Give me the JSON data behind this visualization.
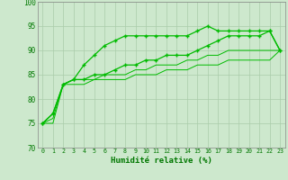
{
  "title": "",
  "xlabel": "Humidité relative (%)",
  "ylabel": "",
  "xlim": [
    -0.5,
    23.5
  ],
  "ylim": [
    70,
    100
  ],
  "yticks": [
    70,
    75,
    80,
    85,
    90,
    95,
    100
  ],
  "xticks": [
    0,
    1,
    2,
    3,
    4,
    5,
    6,
    7,
    8,
    9,
    10,
    11,
    12,
    13,
    14,
    15,
    16,
    17,
    18,
    19,
    20,
    21,
    22,
    23
  ],
  "bg_color": "#cde8cd",
  "grid_color": "#aaccaa",
  "line_color": "#00bb00",
  "line1_x": [
    0,
    1,
    2,
    3,
    4,
    5,
    6,
    7,
    8,
    9,
    10,
    11,
    12,
    13,
    14,
    15,
    16,
    17,
    18,
    19,
    20,
    21,
    22,
    23
  ],
  "line1_y": [
    75,
    77,
    83,
    84,
    87,
    89,
    91,
    92,
    93,
    93,
    93,
    93,
    93,
    93,
    93,
    94,
    95,
    94,
    94,
    94,
    94,
    94,
    94,
    90
  ],
  "line2_x": [
    0,
    1,
    2,
    3,
    4,
    5,
    6,
    7,
    8,
    9,
    10,
    11,
    12,
    13,
    14,
    15,
    16,
    17,
    18,
    19,
    20,
    21,
    22,
    23
  ],
  "line2_y": [
    75,
    77,
    83,
    84,
    84,
    85,
    85,
    86,
    87,
    87,
    88,
    88,
    89,
    89,
    89,
    90,
    91,
    92,
    93,
    93,
    93,
    93,
    94,
    90
  ],
  "line3_x": [
    0,
    1,
    2,
    3,
    4,
    5,
    6,
    7,
    8,
    9,
    10,
    11,
    12,
    13,
    14,
    15,
    16,
    17,
    18,
    19,
    20,
    21,
    22,
    23
  ],
  "line3_y": [
    75,
    76,
    83,
    84,
    84,
    84,
    85,
    85,
    85,
    86,
    86,
    87,
    87,
    87,
    88,
    88,
    89,
    89,
    90,
    90,
    90,
    90,
    90,
    90
  ],
  "line4_x": [
    0,
    1,
    2,
    3,
    4,
    5,
    6,
    7,
    8,
    9,
    10,
    11,
    12,
    13,
    14,
    15,
    16,
    17,
    18,
    19,
    20,
    21,
    22,
    23
  ],
  "line4_y": [
    75,
    75,
    83,
    83,
    83,
    84,
    84,
    84,
    84,
    85,
    85,
    85,
    86,
    86,
    86,
    87,
    87,
    87,
    88,
    88,
    88,
    88,
    88,
    90
  ]
}
